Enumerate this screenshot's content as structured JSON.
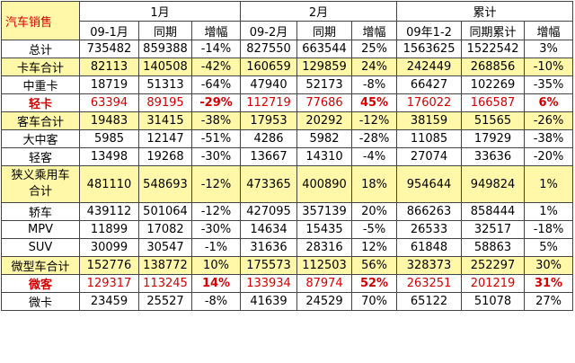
{
  "header": {
    "title": "汽车销售",
    "groups": [
      "1月",
      "2月",
      "累计"
    ],
    "subheaders": [
      "09-1月",
      "同期",
      "增幅",
      "09-2月",
      "同期",
      "增幅",
      "09年1-2",
      "同期累计",
      "增幅"
    ]
  },
  "colors": {
    "highlight_row": "#fff8a8",
    "red_text": "#d40000"
  },
  "rows": [
    {
      "label": "总计",
      "highlight": false,
      "red": false,
      "cells": [
        "735482",
        "859388",
        "-14%",
        "827550",
        "663544",
        "25%",
        "1563625",
        "1522542",
        "3%"
      ]
    },
    {
      "label": "卡车合计",
      "highlight": true,
      "red": false,
      "cells": [
        "82113",
        "140508",
        "-42%",
        "160659",
        "129859",
        "24%",
        "242449",
        "268856",
        "-10%"
      ]
    },
    {
      "label": "中重卡",
      "highlight": false,
      "red": false,
      "cells": [
        "18719",
        "51313",
        "-64%",
        "47940",
        "52173",
        "-8%",
        "66427",
        "102269",
        "-35%"
      ]
    },
    {
      "label": "轻卡",
      "highlight": false,
      "red": true,
      "cells": [
        "63394",
        "89195",
        "-29%",
        "112719",
        "77686",
        "45%",
        "176022",
        "166587",
        "6%"
      ]
    },
    {
      "label": "客车合计",
      "highlight": true,
      "red": false,
      "cells": [
        "19483",
        "31415",
        "-38%",
        "17953",
        "20292",
        "-12%",
        "38159",
        "51565",
        "-26%"
      ]
    },
    {
      "label": "大中客",
      "highlight": false,
      "red": false,
      "cells": [
        "5985",
        "12147",
        "-51%",
        "4286",
        "5982",
        "-28%",
        "11085",
        "17929",
        "-38%"
      ]
    },
    {
      "label": "轻客",
      "highlight": false,
      "red": false,
      "cells": [
        "13498",
        "19268",
        "-30%",
        "13667",
        "14310",
        "-4%",
        "27074",
        "33636",
        "-20%"
      ]
    },
    {
      "label": "狭义乘用车合计",
      "highlight": true,
      "red": false,
      "cells": [
        "481110",
        "548693",
        "-12%",
        "473365",
        "400890",
        "18%",
        "954644",
        "949824",
        "1%"
      ]
    },
    {
      "label": "轿车",
      "highlight": false,
      "red": false,
      "cells": [
        "439112",
        "501064",
        "-12%",
        "427095",
        "357139",
        "20%",
        "866263",
        "858444",
        "1%"
      ]
    },
    {
      "label": "MPV",
      "highlight": false,
      "red": false,
      "cells": [
        "11899",
        "17082",
        "-30%",
        "14634",
        "15435",
        "-5%",
        "26533",
        "32517",
        "-18%"
      ]
    },
    {
      "label": "SUV",
      "highlight": false,
      "red": false,
      "cells": [
        "30099",
        "30547",
        "-1%",
        "31636",
        "28316",
        "12%",
        "61848",
        "58863",
        "5%"
      ]
    },
    {
      "label": "微型车合计",
      "highlight": true,
      "red": false,
      "cells": [
        "152776",
        "138772",
        "10%",
        "175573",
        "112503",
        "56%",
        "328373",
        "252297",
        "30%"
      ]
    },
    {
      "label": "微客",
      "highlight": false,
      "red": true,
      "cells": [
        "129317",
        "113245",
        "14%",
        "133934",
        "87974",
        "52%",
        "263251",
        "201219",
        "31%"
      ]
    },
    {
      "label": "微卡",
      "highlight": false,
      "red": false,
      "cells": [
        "23459",
        "25527",
        "-8%",
        "41639",
        "24529",
        "70%",
        "65122",
        "51078",
        "27%"
      ]
    }
  ]
}
